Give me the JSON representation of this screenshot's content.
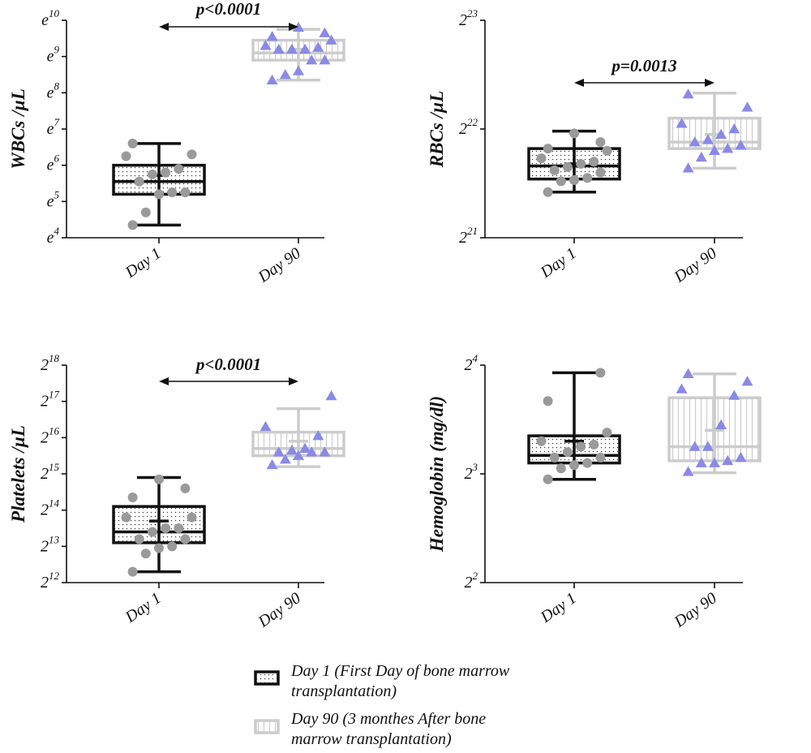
{
  "chart_data": [
    {
      "type": "box",
      "ylabel": "WBCs /µL",
      "scale": "log-e",
      "ylim": [
        4,
        10
      ],
      "y_ticks": [
        {
          "base": "e",
          "exp": "4"
        },
        {
          "base": "e",
          "exp": "5"
        },
        {
          "base": "e",
          "exp": "6"
        },
        {
          "base": "e",
          "exp": "7"
        },
        {
          "base": "e",
          "exp": "8"
        },
        {
          "base": "e",
          "exp": "9"
        },
        {
          "base": "e",
          "exp": "10"
        }
      ],
      "categories": [
        "Day 1",
        "Day 90"
      ],
      "annotation": "p<0.0001",
      "groups": [
        {
          "name": "Day 1",
          "min": 4.35,
          "q1": 5.2,
          "median": 5.55,
          "mean": 5.72,
          "q3": 6.0,
          "max": 6.6,
          "points": [
            4.35,
            4.7,
            5.2,
            5.25,
            5.25,
            5.55,
            5.75,
            5.8,
            5.9,
            6.25,
            6.3,
            6.6
          ]
        },
        {
          "name": "Day 90",
          "min": 8.35,
          "q1": 8.9,
          "median": 9.1,
          "mean": 9.2,
          "q3": 9.45,
          "max": 9.75,
          "points": [
            8.35,
            8.5,
            8.6,
            8.9,
            8.9,
            9.2,
            9.2,
            9.2,
            9.25,
            9.3,
            9.45,
            9.55,
            9.65,
            9.8
          ]
        }
      ]
    },
    {
      "type": "box",
      "ylabel": "RBCs /µL",
      "scale": "log-2",
      "ylim": [
        21,
        23
      ],
      "y_ticks": [
        {
          "base": "2",
          "exp": "21"
        },
        {
          "base": "2",
          "exp": "22"
        },
        {
          "base": "2",
          "exp": "23"
        }
      ],
      "categories": [
        "Day 1",
        "Day 90"
      ],
      "annotation": "p=0.0013",
      "groups": [
        {
          "name": "Day 1",
          "min": 21.42,
          "q1": 21.54,
          "median": 21.66,
          "mean": 21.68,
          "q3": 21.82,
          "max": 21.98,
          "points": [
            21.42,
            21.52,
            21.53,
            21.55,
            21.6,
            21.62,
            21.65,
            21.68,
            21.7,
            21.73,
            21.8,
            21.82,
            21.88,
            21.96
          ]
        },
        {
          "name": "Day 90",
          "min": 21.64,
          "q1": 21.82,
          "median": 21.88,
          "mean": 21.95,
          "q3": 22.1,
          "max": 22.33,
          "points": [
            21.64,
            21.74,
            21.8,
            21.82,
            21.85,
            21.88,
            21.9,
            21.95,
            22.0,
            22.05,
            22.2,
            22.32
          ]
        }
      ]
    },
    {
      "type": "box",
      "ylabel": "Platelets /µL",
      "scale": "log-2",
      "ylim": [
        12,
        18
      ],
      "y_ticks": [
        {
          "base": "2",
          "exp": "12"
        },
        {
          "base": "2",
          "exp": "13"
        },
        {
          "base": "2",
          "exp": "14"
        },
        {
          "base": "2",
          "exp": "15"
        },
        {
          "base": "2",
          "exp": "16"
        },
        {
          "base": "2",
          "exp": "17"
        },
        {
          "base": "2",
          "exp": "18"
        }
      ],
      "categories": [
        "Day 1",
        "Day 90"
      ],
      "annotation": "p<0.0001",
      "groups": [
        {
          "name": "Day 1",
          "min": 12.3,
          "q1": 13.1,
          "median": 13.4,
          "mean": 13.7,
          "q3": 14.1,
          "max": 14.9,
          "points": [
            12.3,
            12.8,
            12.95,
            13.0,
            13.2,
            13.2,
            13.4,
            13.5,
            13.5,
            13.8,
            13.8,
            14.35,
            14.6,
            14.85
          ]
        },
        {
          "name": "Day 90",
          "min": 15.2,
          "q1": 15.5,
          "median": 15.7,
          "mean": 15.9,
          "q3": 16.15,
          "max": 16.8,
          "points": [
            15.25,
            15.4,
            15.5,
            15.6,
            15.6,
            15.6,
            15.65,
            15.7,
            16.05,
            16.3,
            17.15
          ]
        }
      ]
    },
    {
      "type": "box",
      "ylabel": "Hemoglobin (mg/dl)",
      "scale": "log-2",
      "ylim": [
        2,
        4
      ],
      "y_ticks": [
        {
          "base": "2",
          "exp": "2"
        },
        {
          "base": "2",
          "exp": "3"
        },
        {
          "base": "2",
          "exp": "4"
        }
      ],
      "categories": [
        "Day 1",
        "Day 90"
      ],
      "annotation": "",
      "groups": [
        {
          "name": "Day 1",
          "min": 2.95,
          "q1": 3.1,
          "median": 3.17,
          "mean": 3.3,
          "q3": 3.35,
          "max": 3.93,
          "points": [
            2.95,
            3.05,
            3.08,
            3.1,
            3.15,
            3.15,
            3.2,
            3.25,
            3.27,
            3.3,
            3.38,
            3.67,
            3.93
          ]
        },
        {
          "name": "Day 90",
          "min": 3.01,
          "q1": 3.12,
          "median": 3.25,
          "mean": 3.4,
          "q3": 3.7,
          "max": 3.92,
          "points": [
            3.02,
            3.1,
            3.1,
            3.12,
            3.15,
            3.25,
            3.25,
            3.45,
            3.72,
            3.78,
            3.85,
            3.92
          ]
        }
      ]
    }
  ],
  "legend": [
    {
      "line1": "Day 1 (First Day of bone marrow",
      "line2": "transplantation)",
      "style": "day1"
    },
    {
      "line1": "Day 90 (3 monthes After bone",
      "line2": "marrow transplantation)",
      "style": "day90"
    }
  ],
  "colors": {
    "day1_box": "#111111",
    "day90_box": "#cccccc",
    "day1_points": "#9a9a9a",
    "day90_points": "#8a8ae6"
  }
}
